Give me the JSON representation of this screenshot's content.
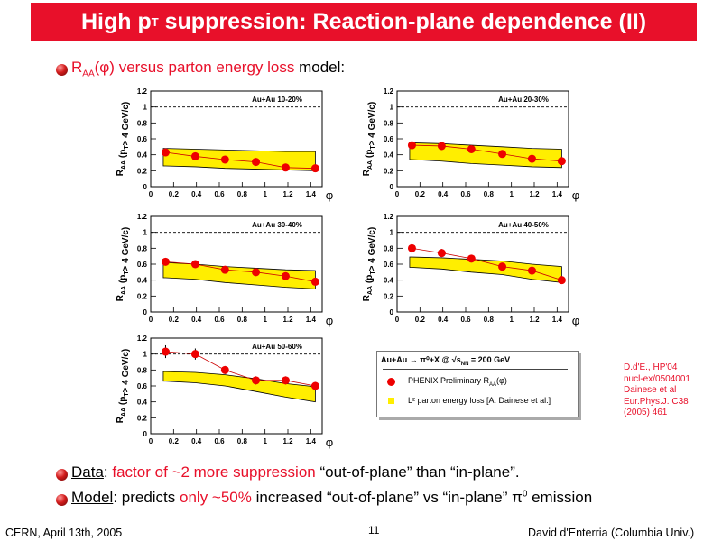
{
  "slide": {
    "title_main": "High p",
    "title_sub": "T",
    "title_rest": " suppression: Reaction-plane dependence (II)",
    "bullet1": {
      "r": "R",
      "aa": "AA",
      "phi": "(φ) versus parton energy loss",
      "model": " model:"
    },
    "bullet2": {
      "data": "Data",
      "colon": ": ",
      "red": "factor of ~2 more suppression",
      "rest": " “out-of-plane” than “in-plane”."
    },
    "bullet3": {
      "model": "Model",
      "colon": ": predicts ",
      "red": "only ~50%",
      "rest": " increased “out-of-plane” vs “in-plane” π",
      "sup": "0",
      "end": " emission"
    },
    "reference": [
      "D.d'E., HP'04",
      "nucl-ex/0504001",
      "Dainese et al",
      "Eur.Phys.J. C38",
      "(2005) 461"
    ],
    "footer": {
      "left": "CERN, April 13th, 2005",
      "page": "11",
      "right": "David d'Enterria (Columbia Univ.)"
    },
    "legend": {
      "header": "Au+Au → π⁰+X @ √s",
      "header_sub": "NN",
      "header_end": " = 200 GeV",
      "data_label": "PHENIX Preliminary R",
      "data_sub": "AA",
      "data_end": "(φ)",
      "model_label": "L² parton energy loss [A. Dainese et al.]"
    }
  },
  "colors": {
    "accent": "#e8102a",
    "band": "#ffee00",
    "point": "#ee0000"
  },
  "chart_data": [
    {
      "type": "scatter",
      "panel": "Au+Au 10-20%",
      "x": [
        0.13,
        0.39,
        0.65,
        0.92,
        1.18,
        1.44
      ],
      "y": [
        0.43,
        0.38,
        0.34,
        0.31,
        0.24,
        0.23
      ],
      "yerr": [
        0.02,
        0.02,
        0.02,
        0.02,
        0.02,
        0.02
      ],
      "band_low": [
        0.26,
        0.25,
        0.23,
        0.22,
        0.21,
        0.2
      ],
      "band_high": [
        0.48,
        0.47,
        0.46,
        0.45,
        0.44,
        0.44
      ],
      "ylabel": "R",
      "ylabel_sub": "AA",
      "ylabel_end": " (p",
      "ylabel_sub2": "T",
      "ylabel_end2": "> 4 GeV/c)",
      "xlabel": "φ",
      "xlim": [
        0,
        1.5
      ],
      "ylim": [
        0,
        1.2
      ],
      "xticks": [
        "0",
        "0.2",
        "0.4",
        "0.6",
        "0.8",
        "1",
        "1.2",
        "1.4"
      ],
      "yticks": [
        "0",
        "0.2",
        "0.4",
        "0.6",
        "0.8",
        "1",
        "1.2"
      ]
    },
    {
      "type": "scatter",
      "panel": "Au+Au 20-30%",
      "x": [
        0.13,
        0.39,
        0.65,
        0.92,
        1.18,
        1.44
      ],
      "y": [
        0.52,
        0.51,
        0.47,
        0.41,
        0.35,
        0.32
      ],
      "yerr": [
        0.02,
        0.02,
        0.02,
        0.02,
        0.02,
        0.02
      ],
      "band_low": [
        0.34,
        0.32,
        0.29,
        0.27,
        0.25,
        0.24
      ],
      "band_high": [
        0.55,
        0.54,
        0.52,
        0.5,
        0.48,
        0.47
      ],
      "ylabel": "R",
      "ylabel_sub": "AA",
      "ylabel_end": " (p",
      "ylabel_sub2": "T",
      "ylabel_end2": "> 4 GeV/c)",
      "xlabel": "φ",
      "xlim": [
        0,
        1.5
      ],
      "ylim": [
        0,
        1.2
      ],
      "xticks": [
        "0",
        "0.2",
        "0.4",
        "0.6",
        "0.8",
        "1",
        "1.2",
        "1.4"
      ],
      "yticks": [
        "0",
        "0.2",
        "0.4",
        "0.6",
        "0.8",
        "1",
        "1.2"
      ]
    },
    {
      "type": "scatter",
      "panel": "Au+Au 30-40%",
      "x": [
        0.13,
        0.39,
        0.65,
        0.92,
        1.18,
        1.44
      ],
      "y": [
        0.63,
        0.6,
        0.53,
        0.5,
        0.45,
        0.38
      ],
      "yerr": [
        0.03,
        0.03,
        0.03,
        0.03,
        0.03,
        0.03
      ],
      "band_low": [
        0.43,
        0.41,
        0.37,
        0.34,
        0.31,
        0.29
      ],
      "band_high": [
        0.62,
        0.6,
        0.57,
        0.55,
        0.53,
        0.52
      ],
      "ylabel": "R",
      "ylabel_sub": "AA",
      "ylabel_end": " (p",
      "ylabel_sub2": "T",
      "ylabel_end2": "> 4 GeV/c)",
      "xlabel": "φ",
      "xlim": [
        0,
        1.5
      ],
      "ylim": [
        0,
        1.2
      ],
      "xticks": [
        "0",
        "0.2",
        "0.4",
        "0.6",
        "0.8",
        "1",
        "1.2",
        "1.4"
      ],
      "yticks": [
        "0",
        "0.2",
        "0.4",
        "0.6",
        "0.8",
        "1",
        "1.2"
      ]
    },
    {
      "type": "scatter",
      "panel": "Au+Au 40-50%",
      "x": [
        0.13,
        0.39,
        0.65,
        0.92,
        1.18,
        1.44
      ],
      "y": [
        0.8,
        0.74,
        0.67,
        0.57,
        0.52,
        0.4
      ],
      "yerr": [
        0.07,
        0.05,
        0.04,
        0.04,
        0.03,
        0.03
      ],
      "band_low": [
        0.56,
        0.54,
        0.5,
        0.47,
        0.41,
        0.37
      ],
      "band_high": [
        0.69,
        0.68,
        0.66,
        0.64,
        0.6,
        0.57
      ],
      "ylabel": "R",
      "ylabel_sub": "AA",
      "ylabel_end": " (p",
      "ylabel_sub2": "T",
      "ylabel_end2": "> 4 GeV/c)",
      "xlabel": "φ",
      "xlim": [
        0,
        1.5
      ],
      "ylim": [
        0,
        1.2
      ],
      "xticks": [
        "0",
        "0.2",
        "0.4",
        "0.6",
        "0.8",
        "1",
        "1.2",
        "1.4"
      ],
      "yticks": [
        "0",
        "0.2",
        "0.4",
        "0.6",
        "0.8",
        "1",
        "1.2"
      ]
    },
    {
      "type": "scatter",
      "panel": "Au+Au 50-60%",
      "x": [
        0.13,
        0.39,
        0.65,
        0.92,
        1.18,
        1.44
      ],
      "y": [
        1.03,
        1.0,
        0.8,
        0.67,
        0.67,
        0.6
      ],
      "yerr": [
        0.08,
        0.07,
        0.05,
        0.05,
        0.05,
        0.05
      ],
      "band_low": [
        0.66,
        0.64,
        0.6,
        0.53,
        0.46,
        0.4
      ],
      "band_high": [
        0.78,
        0.77,
        0.74,
        0.69,
        0.63,
        0.59
      ],
      "ylabel": "R",
      "ylabel_sub": "AA",
      "ylabel_end": " (p",
      "ylabel_sub2": "T",
      "ylabel_end2": "> 4 GeV/c)",
      "xlabel": "φ",
      "xlim": [
        0,
        1.5
      ],
      "ylim": [
        0,
        1.2
      ],
      "xticks": [
        "0",
        "0.2",
        "0.4",
        "0.6",
        "0.8",
        "1",
        "1.2",
        "1.4"
      ],
      "yticks": [
        "0",
        "0.2",
        "0.4",
        "0.6",
        "0.8",
        "1",
        "1.2"
      ]
    }
  ]
}
